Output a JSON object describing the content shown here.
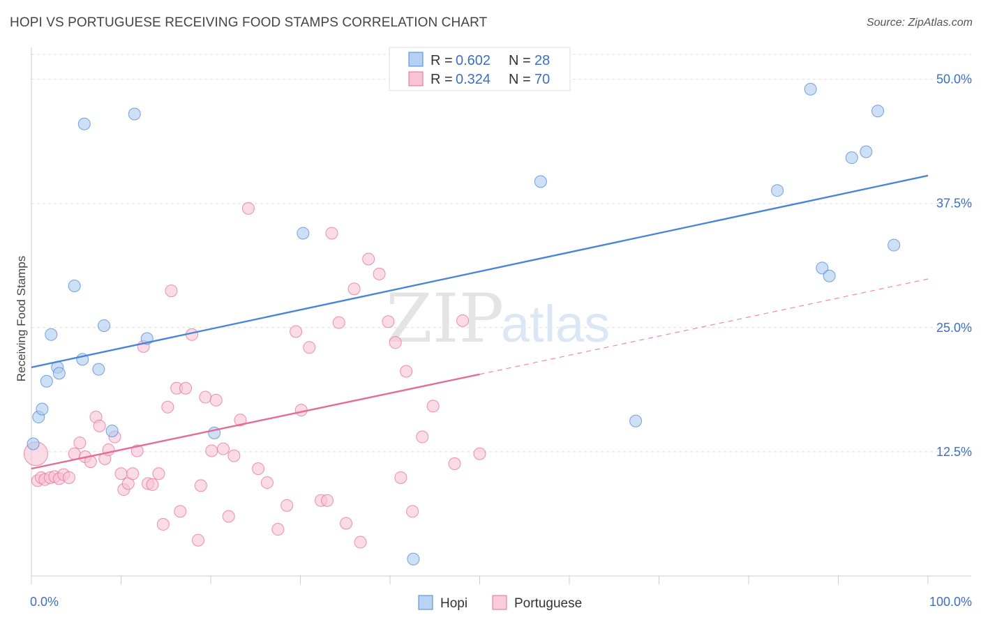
{
  "header": {
    "title": "HOPI VS PORTUGUESE RECEIVING FOOD STAMPS CORRELATION CHART",
    "source": "Source: ZipAtlas.com"
  },
  "watermark": {
    "part1": "ZIP",
    "part2": "atlas"
  },
  "legend": {
    "r_label": "R = ",
    "n_label": "N = ",
    "entries": [
      {
        "r": "0.602",
        "n": "28",
        "color": "#a8c8f0"
      },
      {
        "r": "0.324",
        "n": "70",
        "color": "#f7b8cb"
      }
    ]
  },
  "chart_data": {
    "type": "scatter",
    "title": "HOPI VS PORTUGUESE RECEIVING FOOD STAMPS CORRELATION CHART",
    "xlabel": "",
    "ylabel": "Receiving Food Stamps",
    "xlim": [
      0,
      100
    ],
    "ylim": [
      0,
      52.5
    ],
    "x_tick_labels": [
      "0.0%",
      "100.0%"
    ],
    "y_ticks": [
      12.5,
      25.0,
      37.5,
      50.0
    ],
    "y_tick_labels": [
      "12.5%",
      "25.0%",
      "37.5%",
      "50.0%"
    ],
    "grid": true,
    "legend_position": "top-center",
    "series": [
      {
        "name": "Hopi",
        "color": "#4a86d8",
        "fill": "#aecbef",
        "trend": {
          "x0": 0,
          "y0": 21.0,
          "x1": 100,
          "y1": 40.3,
          "style": "solid"
        },
        "points": [
          [
            0.2,
            13.3
          ],
          [
            0.8,
            16.0
          ],
          [
            1.2,
            16.8
          ],
          [
            1.7,
            19.6
          ],
          [
            2.2,
            24.3
          ],
          [
            2.9,
            21.0
          ],
          [
            3.1,
            20.4
          ],
          [
            4.8,
            29.2
          ],
          [
            5.7,
            21.8
          ],
          [
            5.9,
            45.5
          ],
          [
            7.5,
            20.8
          ],
          [
            8.1,
            25.2
          ],
          [
            9.0,
            14.6
          ],
          [
            11.5,
            46.5
          ],
          [
            12.9,
            23.9
          ],
          [
            20.4,
            14.4
          ],
          [
            30.3,
            34.5
          ],
          [
            42.6,
            1.7
          ],
          [
            56.8,
            39.7
          ],
          [
            67.4,
            15.6
          ],
          [
            83.2,
            38.8
          ],
          [
            86.9,
            49.0
          ],
          [
            88.2,
            31.0
          ],
          [
            89.0,
            30.2
          ],
          [
            91.5,
            42.1
          ],
          [
            93.1,
            42.7
          ],
          [
            94.4,
            46.8
          ],
          [
            96.2,
            33.3
          ]
        ]
      },
      {
        "name": "Portuguese",
        "color": "#e46d98",
        "fill": "#f8c3d3",
        "trend": {
          "x0": 0,
          "y0": 10.8,
          "x1": 50,
          "y1": 20.3,
          "style": "solid",
          "extend_x1": 100,
          "extend_y1": 29.9,
          "extend_style": "dashed"
        },
        "points": [
          [
            0.5,
            12.3
          ],
          [
            0.7,
            9.6
          ],
          [
            1.1,
            9.9
          ],
          [
            1.5,
            9.7
          ],
          [
            2.1,
            9.9
          ],
          [
            2.6,
            10.0
          ],
          [
            3.1,
            9.8
          ],
          [
            3.6,
            10.2
          ],
          [
            4.2,
            9.9
          ],
          [
            4.8,
            12.3
          ],
          [
            5.4,
            13.4
          ],
          [
            6.0,
            12.0
          ],
          [
            6.6,
            11.5
          ],
          [
            7.2,
            16.0
          ],
          [
            7.6,
            15.1
          ],
          [
            8.2,
            11.8
          ],
          [
            8.6,
            12.7
          ],
          [
            9.3,
            14.0
          ],
          [
            10.0,
            10.3
          ],
          [
            10.3,
            8.7
          ],
          [
            10.8,
            9.3
          ],
          [
            11.3,
            10.3
          ],
          [
            11.8,
            12.6
          ],
          [
            12.5,
            23.1
          ],
          [
            13.0,
            9.3
          ],
          [
            13.5,
            9.2
          ],
          [
            14.2,
            10.3
          ],
          [
            14.7,
            5.2
          ],
          [
            15.2,
            17.0
          ],
          [
            15.6,
            28.7
          ],
          [
            16.2,
            18.9
          ],
          [
            16.6,
            6.5
          ],
          [
            17.2,
            18.9
          ],
          [
            17.9,
            24.3
          ],
          [
            18.6,
            3.6
          ],
          [
            18.9,
            9.1
          ],
          [
            19.4,
            18.0
          ],
          [
            20.1,
            12.6
          ],
          [
            20.6,
            17.7
          ],
          [
            21.4,
            12.8
          ],
          [
            22.0,
            6.0
          ],
          [
            22.6,
            12.1
          ],
          [
            23.3,
            15.7
          ],
          [
            24.2,
            37.0
          ],
          [
            25.3,
            10.8
          ],
          [
            26.3,
            9.4
          ],
          [
            27.5,
            4.7
          ],
          [
            28.5,
            7.1
          ],
          [
            29.5,
            24.6
          ],
          [
            30.1,
            16.7
          ],
          [
            31.0,
            23.0
          ],
          [
            32.3,
            7.6
          ],
          [
            33.0,
            7.6
          ],
          [
            33.5,
            34.5
          ],
          [
            34.3,
            25.5
          ],
          [
            35.1,
            5.3
          ],
          [
            36.0,
            28.9
          ],
          [
            36.7,
            3.4
          ],
          [
            37.6,
            31.9
          ],
          [
            38.8,
            30.4
          ],
          [
            39.8,
            25.6
          ],
          [
            40.6,
            23.5
          ],
          [
            41.2,
            9.9
          ],
          [
            41.8,
            20.6
          ],
          [
            42.5,
            6.5
          ],
          [
            43.6,
            14.0
          ],
          [
            44.8,
            17.1
          ],
          [
            47.2,
            11.3
          ],
          [
            48.1,
            25.7
          ],
          [
            50.0,
            12.3
          ]
        ]
      }
    ]
  },
  "bottom_legend": {
    "items": [
      "Hopi",
      "Portuguese"
    ]
  }
}
